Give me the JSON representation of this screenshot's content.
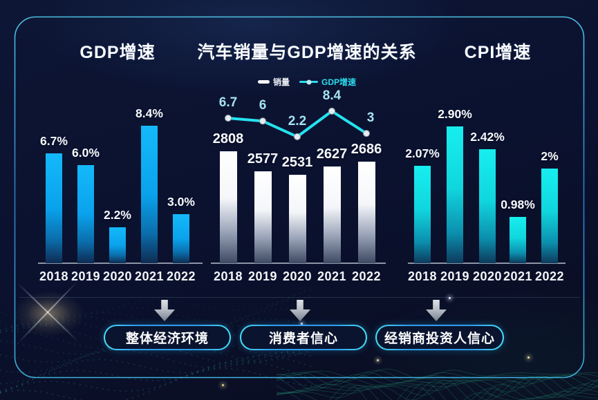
{
  "chart_data": [
    {
      "type": "bar",
      "title": "GDP增速",
      "categories": [
        "2018",
        "2019",
        "2020",
        "2021",
        "2022"
      ],
      "values": [
        6.7,
        6.0,
        2.2,
        8.4,
        3.0
      ],
      "value_labels": [
        "6.7%",
        "6.0%",
        "2.2%",
        "8.4%",
        "3.0%"
      ],
      "ylim": [
        0,
        8.4
      ],
      "grid": false,
      "bar_colors": [
        "#14b9fa",
        "#0e2c52"
      ]
    },
    {
      "type": "bar+line",
      "title": "汽车销量与GDP增速的关系",
      "categories": [
        "2018",
        "2019",
        "2020",
        "2021",
        "2022"
      ],
      "legend": [
        "销量",
        "GDP增速"
      ],
      "legend_position": "top",
      "grid": false,
      "series": [
        {
          "name": "销量",
          "type": "bar",
          "values": [
            2808,
            2577,
            2531,
            2627,
            2686
          ],
          "value_labels": [
            "2808",
            "2577",
            "2531",
            "2627",
            "2686"
          ],
          "ylim": [
            1500,
            2808
          ],
          "bar_colors": [
            "#ffffff",
            "#3e4963"
          ]
        },
        {
          "name": "GDP增速",
          "type": "line",
          "values": [
            6.7,
            6,
            2.2,
            8.4,
            3
          ],
          "value_labels": [
            "6.7",
            "6",
            "2.2",
            "8.4",
            "3"
          ],
          "color": "#25e2ef",
          "point_color": "#e6ecf0"
        }
      ]
    },
    {
      "type": "bar",
      "title": "CPI增速",
      "categories": [
        "2018",
        "2019",
        "2020",
        "2021",
        "2022"
      ],
      "values": [
        2.07,
        2.9,
        2.42,
        0.98,
        2
      ],
      "value_labels": [
        "2.07%",
        "2.90%",
        "2.42%",
        "0.98%",
        "2%"
      ],
      "ylim": [
        0,
        2.9
      ],
      "grid": false,
      "bar_colors": [
        "#17eef0",
        "#0d3a5c"
      ]
    }
  ],
  "flow": {
    "buttons": [
      {
        "label": "整体经济环境"
      },
      {
        "label": "消费者信心"
      },
      {
        "label": "经销商投资人信心"
      }
    ]
  },
  "colors": {
    "background": "#0b1230",
    "frame_border": "#3ec6f0",
    "accent_cyan": "#25e2ef",
    "bar_blue": "#0ea6ee",
    "bar_white": "#ffffff",
    "bar_cyan": "#12dde2",
    "wave_teal": "#2fae96",
    "mesh_green": "#2dbd8d"
  }
}
